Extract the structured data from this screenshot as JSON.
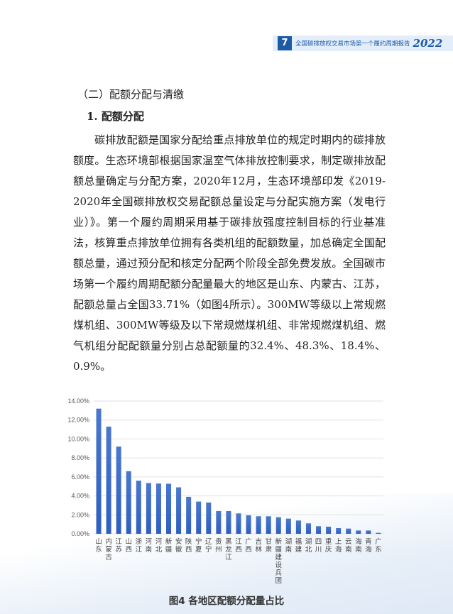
{
  "header": {
    "page_number": "7",
    "title": "全国碳排放权交易市场第一个履约周期报告",
    "year": "2022"
  },
  "section_heading": "（二）配额分配与清缴",
  "subsection_heading": "1. 配额分配",
  "paragraph": "碳排放配额是国家分配给重点排放单位的规定时期内的碳排放额度。生态环境部根据国家温室气体排放控制要求，制定碳排放配额总量确定与分配方案，2020年12月，生态环境部印发《2019-2020年全国碳排放权交易配额总量设定与分配实施方案（发电行业）》。第一个履约周期采用基于碳排放强度控制目标的行业基准法，核算重点排放单位拥有各类机组的配额数量，加总确定全国配额总量，通过预分配和核定分配两个阶段全部免费发放。全国碳市场第一个履约周期配额分配量最大的地区是山东、内蒙古、江苏，配额总量占全国33.71%（如图4所示）。300MW等级以上常规燃煤机组、300MW等级及以下常规燃煤机组、非常规燃煤机组、燃气机组分配配额量分别占总配额量的32.4%、48.3%、18.4%、0.9%。",
  "caption": "图4 各地区配额分配量占比",
  "colors": {
    "brand": "#1d5aa6",
    "bar": "#3b6cc6"
  },
  "chart_data": {
    "type": "bar",
    "categories": [
      "山东",
      "内蒙古",
      "江苏",
      "山西",
      "浙江",
      "河南",
      "河北",
      "新疆",
      "安徽",
      "陕西",
      "宁夏",
      "辽宁",
      "贵州",
      "黑龙江",
      "江西",
      "广西",
      "吉林",
      "甘肃",
      "新疆建设兵团",
      "湖南",
      "福建",
      "湖北",
      "四川",
      "重庆",
      "上海",
      "云南",
      "海南",
      "青海",
      "广东"
    ],
    "values": [
      13.2,
      11.3,
      9.2,
      6.6,
      5.6,
      5.35,
      5.3,
      5.28,
      4.9,
      3.9,
      3.4,
      3.3,
      2.4,
      2.4,
      2.15,
      1.95,
      1.85,
      1.85,
      1.75,
      1.6,
      1.4,
      1.1,
      0.8,
      0.75,
      0.6,
      0.55,
      0.35,
      0.35,
      0.1
    ],
    "yticks": [
      "0.00%",
      "2.00%",
      "4.00%",
      "6.00%",
      "8.00%",
      "10.00%",
      "12.00%",
      "14.00%"
    ],
    "ylim": [
      0,
      14
    ],
    "unit": "%",
    "grid": true,
    "legend": "none"
  }
}
